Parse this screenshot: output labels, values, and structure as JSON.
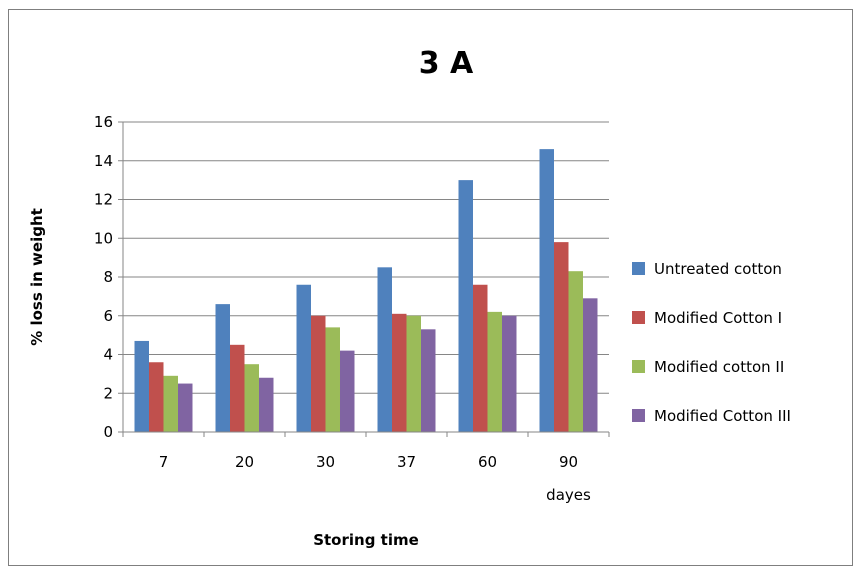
{
  "chart_data": {
    "type": "bar",
    "title": "3 A",
    "xlabel": "Storing time",
    "ylabel": "% loss in weight",
    "categories": [
      "7",
      "20",
      "30",
      "37",
      "60",
      "90"
    ],
    "x_axis_unit": "dayes",
    "ylim": [
      0,
      16
    ],
    "yticks": [
      "0",
      "2",
      "4",
      "6",
      "8",
      "10",
      "12",
      "14",
      "16"
    ],
    "grid": true,
    "legend_position": "right",
    "series": [
      {
        "name": "Untreated cotton",
        "color": "#4f81bd",
        "values": [
          4.7,
          6.6,
          7.6,
          8.5,
          13.0,
          14.6
        ]
      },
      {
        "name": "Modified Cotton I",
        "color": "#c0504d",
        "values": [
          3.6,
          4.5,
          6.0,
          6.1,
          7.6,
          9.8
        ]
      },
      {
        "name": "Modified cotton II",
        "color": "#9bbb59",
        "values": [
          2.9,
          3.5,
          5.4,
          6.0,
          6.2,
          8.3
        ]
      },
      {
        "name": "Modified Cotton III",
        "color": "#8064a2",
        "values": [
          2.5,
          2.8,
          4.2,
          5.3,
          6.0,
          6.9
        ]
      }
    ]
  }
}
